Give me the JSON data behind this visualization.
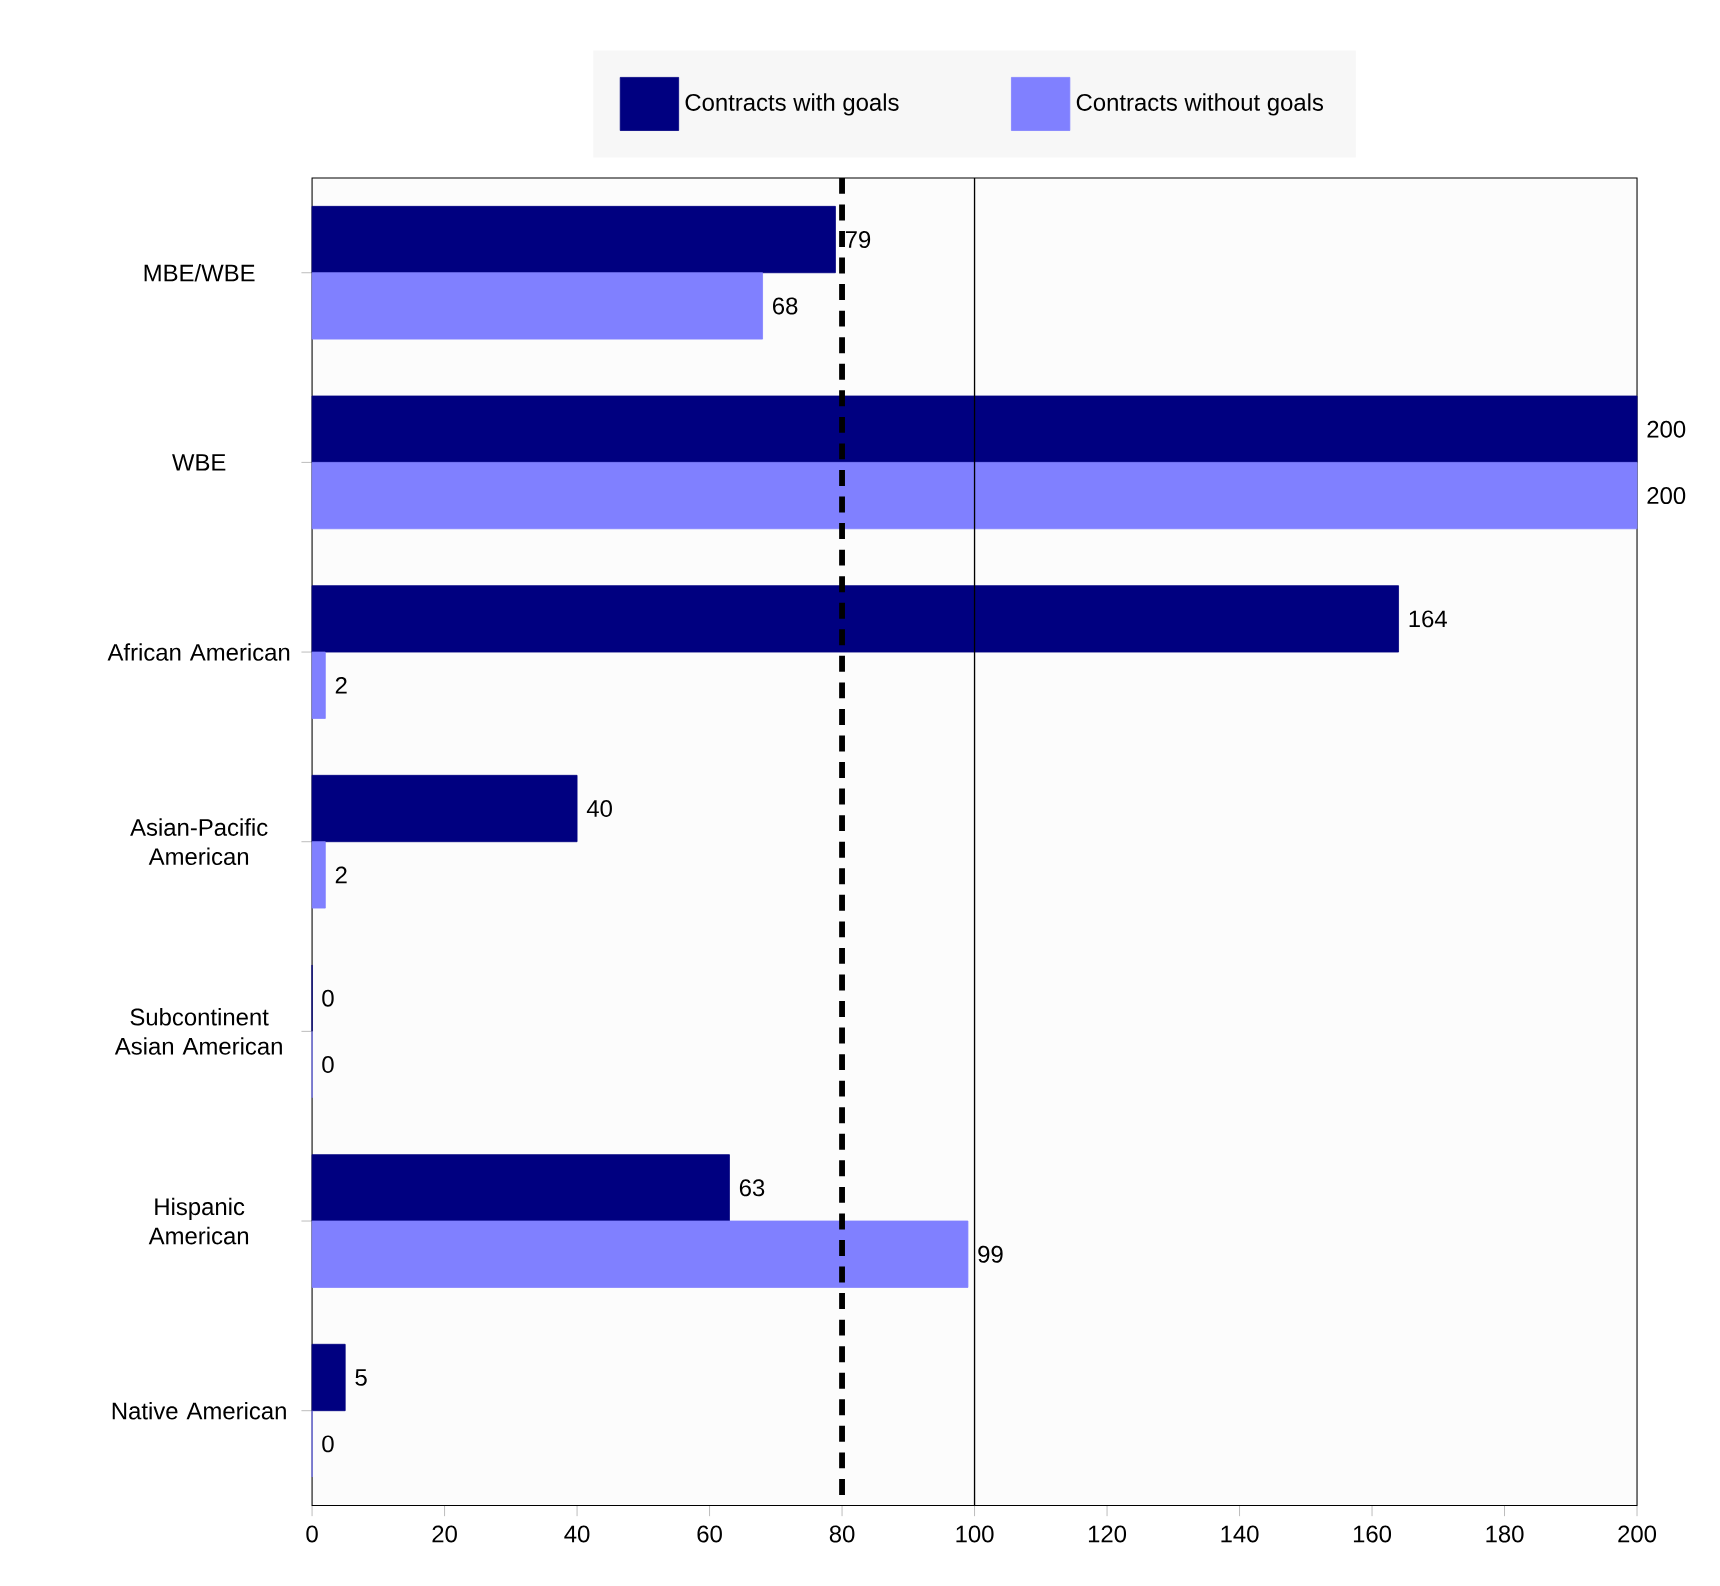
{
  "chart_data": {
    "type": "bar",
    "orientation": "horizontal",
    "categories": [
      "MBE/WBE",
      "WBE",
      "African American",
      "Asian-Pacific American",
      "Subcontinent Asian American",
      "Hispanic American",
      "Native American"
    ],
    "series": [
      {
        "name": "Contracts with goals",
        "color": "#000080",
        "values": [
          79,
          200,
          164,
          40,
          0,
          63,
          5
        ]
      },
      {
        "name": "Contracts without goals",
        "color": "#8080ff",
        "values": [
          68,
          200,
          2,
          2,
          0,
          99,
          0
        ]
      }
    ],
    "xlim": [
      0,
      200
    ],
    "xticks": [
      0,
      20,
      40,
      60,
      80,
      100,
      120,
      140,
      160,
      180,
      200
    ],
    "ref_lines": [
      {
        "axis": "x",
        "value": 80,
        "line_style": "dashed",
        "color": "#000000"
      },
      {
        "axis": "x",
        "value": 100,
        "line_style": "solid",
        "color": "#000000"
      }
    ],
    "data_labels": true,
    "legend": "top",
    "grid": false
  }
}
